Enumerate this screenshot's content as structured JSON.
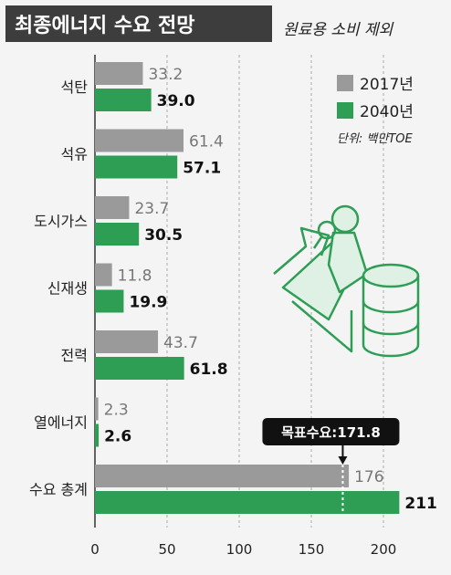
{
  "header": {
    "title": "최종에너지 수요 전망",
    "subtitle": "원료용 소비 제외"
  },
  "chart_data": {
    "type": "bar",
    "orientation": "horizontal",
    "categories": [
      "석탄",
      "석유",
      "도시가스",
      "신재생",
      "전력",
      "열에너지",
      "수요 총계"
    ],
    "series": [
      {
        "name": "2017년",
        "values": [
          33.2,
          61.4,
          23.7,
          11.8,
          43.7,
          2.3,
          176
        ],
        "labels": [
          "33.2",
          "61.4",
          "23.7",
          "11.8",
          "43.7",
          "2.3",
          "176"
        ],
        "color": "#9a9a9a"
      },
      {
        "name": "2040년",
        "values": [
          39.0,
          57.1,
          30.5,
          19.9,
          61.8,
          2.6,
          211
        ],
        "labels": [
          "39.0",
          "57.1",
          "30.5",
          "19.9",
          "61.8",
          "2.6",
          "211"
        ],
        "color": "#2e9e55"
      }
    ],
    "xlim": [
      0,
      220
    ],
    "xticks": [
      0,
      50,
      100,
      150,
      200
    ],
    "unit": "단위: 백만TOE",
    "annotation": {
      "text": "목표수요:171.8",
      "value": 171.8
    }
  }
}
